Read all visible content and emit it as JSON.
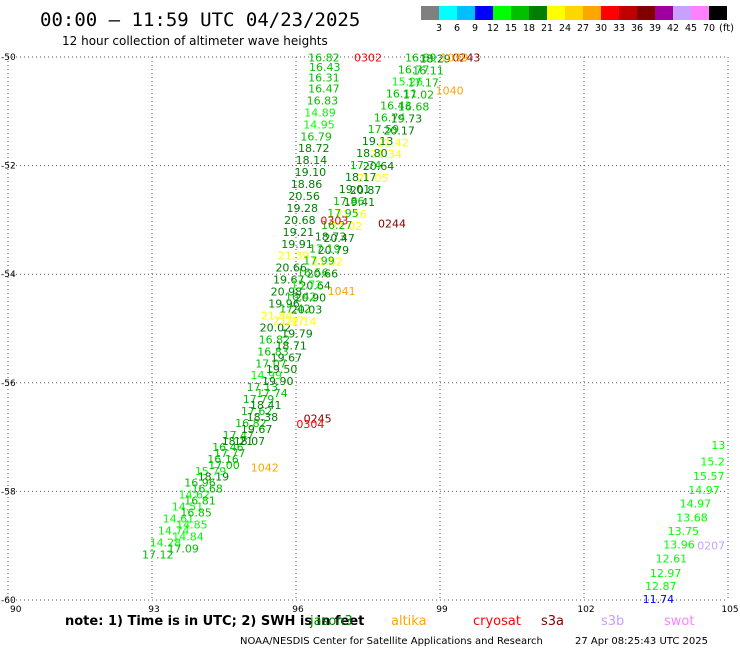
{
  "header": {
    "title": "00:00 – 11:59 UTC 04/23/2025",
    "subtitle": "12 hour collection of altimeter wave heights"
  },
  "colorbar": {
    "labels": [
      "3",
      "6",
      "9",
      "12",
      "15",
      "18",
      "21",
      "24",
      "27",
      "30",
      "33",
      "36",
      "39",
      "42",
      "45",
      "70"
    ],
    "unit": "(ft)",
    "colors": [
      "#808080",
      "#00ffff",
      "#00bfff",
      "#0000ff",
      "#00ff00",
      "#00c000",
      "#008000",
      "#ffff00",
      "#ffd700",
      "#ffa500",
      "#ff0000",
      "#c00000",
      "#800000",
      "#a000a0",
      "#c8a0ff",
      "#ff80ff",
      "#000000"
    ]
  },
  "footer": {
    "note": "note:  1) Time is in UTC;  2) SWH is in feet",
    "legend": [
      {
        "name": "jason3",
        "color": "#008000"
      },
      {
        "name": "altika",
        "color": "#ffa500"
      },
      {
        "name": "cryosat",
        "color": "#ff0000"
      },
      {
        "name": "s3a",
        "color": "#800000"
      },
      {
        "name": "s3b",
        "color": "#c8a0ff"
      },
      {
        "name": "swot",
        "color": "#ff80ff"
      }
    ],
    "credit": "NOAA/NESDIS Center for Satellite Applications and Research",
    "timestamp": "27 Apr 08:25:43 UTC 2025"
  },
  "chart_data": {
    "type": "scatter",
    "xlim": [
      90,
      105
    ],
    "ylim": [
      -60,
      -50
    ],
    "xticks": [
      "90",
      "93",
      "96",
      "99",
      "102",
      "105"
    ],
    "yticks": [
      "-50",
      "-52",
      "-54",
      "-56",
      "-58",
      "-60"
    ],
    "grid": true,
    "points": [
      {
        "x": 96.58,
        "y": -50.01,
        "text": "16.82",
        "color": "#00c000"
      },
      {
        "x": 96.6,
        "y": -50.18,
        "text": "16.43",
        "color": "#00c000"
      },
      {
        "x": 96.58,
        "y": -50.38,
        "text": "16.31",
        "color": "#00c000"
      },
      {
        "x": 96.58,
        "y": -50.58,
        "text": "16.47",
        "color": "#00c000"
      },
      {
        "x": 96.55,
        "y": -50.8,
        "text": "16.83",
        "color": "#00c000"
      },
      {
        "x": 96.5,
        "y": -51.02,
        "text": "14.89",
        "color": "#00ff00"
      },
      {
        "x": 96.48,
        "y": -51.24,
        "text": "14.95",
        "color": "#00ff00"
      },
      {
        "x": 96.42,
        "y": -51.46,
        "text": "16.79",
        "color": "#00c000"
      },
      {
        "x": 96.37,
        "y": -51.68,
        "text": "18.72",
        "color": "#008000"
      },
      {
        "x": 96.32,
        "y": -51.9,
        "text": "18.14",
        "color": "#008000"
      },
      {
        "x": 96.3,
        "y": -52.12,
        "text": "19.10",
        "color": "#008000"
      },
      {
        "x": 96.22,
        "y": -52.34,
        "text": "18.86",
        "color": "#008000"
      },
      {
        "x": 96.17,
        "y": -52.56,
        "text": "20.56",
        "color": "#008000"
      },
      {
        "x": 96.13,
        "y": -52.78,
        "text": "19.28",
        "color": "#008000"
      },
      {
        "x": 96.08,
        "y": -53.0,
        "text": "20.68",
        "color": "#008000"
      },
      {
        "x": 96.05,
        "y": -53.22,
        "text": "19.21",
        "color": "#008000"
      },
      {
        "x": 96.02,
        "y": -53.44,
        "text": "19.91",
        "color": "#008000"
      },
      {
        "x": 95.95,
        "y": -53.66,
        "text": "21.39",
        "color": "#ffff00"
      },
      {
        "x": 95.9,
        "y": -53.88,
        "text": "20.66",
        "color": "#008000"
      },
      {
        "x": 95.85,
        "y": -54.1,
        "text": "19.67",
        "color": "#008000"
      },
      {
        "x": 95.8,
        "y": -54.32,
        "text": "20.98",
        "color": "#008000"
      },
      {
        "x": 95.75,
        "y": -54.54,
        "text": "19.96",
        "color": "#008000"
      },
      {
        "x": 95.6,
        "y": -54.76,
        "text": "21.84",
        "color": "#ffff00"
      },
      {
        "x": 95.57,
        "y": -54.98,
        "text": "20.02",
        "color": "#008000"
      },
      {
        "x": 95.55,
        "y": -55.2,
        "text": "16.82",
        "color": "#00c000"
      },
      {
        "x": 95.52,
        "y": -55.42,
        "text": "16.83",
        "color": "#00c000"
      },
      {
        "x": 95.48,
        "y": -55.64,
        "text": "17.07",
        "color": "#00c000"
      },
      {
        "x": 95.38,
        "y": -55.86,
        "text": "14.99",
        "color": "#00ff00"
      },
      {
        "x": 95.3,
        "y": -56.08,
        "text": "17.13",
        "color": "#00c000"
      },
      {
        "x": 95.22,
        "y": -56.3,
        "text": "17.79",
        "color": "#00c000"
      },
      {
        "x": 95.18,
        "y": -56.52,
        "text": "17.62",
        "color": "#00c000"
      },
      {
        "x": 95.06,
        "y": -56.74,
        "text": "16.82",
        "color": "#00c000"
      },
      {
        "x": 94.8,
        "y": -56.96,
        "text": "17.47",
        "color": "#00c000"
      },
      {
        "x": 94.58,
        "y": -57.18,
        "text": "16.46",
        "color": "#00c000"
      },
      {
        "x": 94.48,
        "y": -57.4,
        "text": "16.16",
        "color": "#00c000"
      },
      {
        "x": 94.22,
        "y": -57.62,
        "text": "15.79",
        "color": "#00ff00"
      },
      {
        "x": 94.0,
        "y": -57.84,
        "text": "16.96",
        "color": "#00c000"
      },
      {
        "x": 93.88,
        "y": -58.06,
        "text": "14.62",
        "color": "#00ff00"
      },
      {
        "x": 93.74,
        "y": -58.28,
        "text": "14.51",
        "color": "#00ff00"
      },
      {
        "x": 93.55,
        "y": -58.5,
        "text": "14.61",
        "color": "#00ff00"
      },
      {
        "x": 93.45,
        "y": -58.72,
        "text": "14.74",
        "color": "#00ff00"
      },
      {
        "x": 93.28,
        "y": -58.94,
        "text": "14.28",
        "color": "#00ff00"
      },
      {
        "x": 93.12,
        "y": -59.16,
        "text": "17.12",
        "color": "#00c000"
      },
      {
        "x": 93.65,
        "y": -59.05,
        "text": "17.09",
        "color": "#00c000"
      },
      {
        "x": 93.75,
        "y": -58.83,
        "text": "14.84",
        "color": "#00ff00"
      },
      {
        "x": 93.83,
        "y": -58.61,
        "text": "14.85",
        "color": "#00ff00"
      },
      {
        "x": 93.92,
        "y": -58.39,
        "text": "16.85",
        "color": "#00c000"
      },
      {
        "x": 94.0,
        "y": -58.17,
        "text": "16.81",
        "color": "#00c000"
      },
      {
        "x": 94.15,
        "y": -57.95,
        "text": "16.68",
        "color": "#00c000"
      },
      {
        "x": 94.28,
        "y": -57.73,
        "text": "18.19",
        "color": "#008000"
      },
      {
        "x": 94.5,
        "y": -57.51,
        "text": "17.00",
        "color": "#00c000"
      },
      {
        "x": 94.62,
        "y": -57.29,
        "text": "17.77",
        "color": "#00c000"
      },
      {
        "x": 94.78,
        "y": -57.07,
        "text": "18.21",
        "color": "#008000"
      },
      {
        "x": 95.03,
        "y": -57.07,
        "text": "18.07",
        "color": "#008000"
      },
      {
        "x": 95.18,
        "y": -56.85,
        "text": "19.67",
        "color": "#008000"
      },
      {
        "x": 95.3,
        "y": -56.63,
        "text": "18.38",
        "color": "#008000"
      },
      {
        "x": 95.37,
        "y": -56.41,
        "text": "18.41",
        "color": "#008000"
      },
      {
        "x": 95.5,
        "y": -56.19,
        "text": "17.74",
        "color": "#00c000"
      },
      {
        "x": 95.62,
        "y": -55.97,
        "text": "19.90",
        "color": "#008000"
      },
      {
        "x": 95.7,
        "y": -55.75,
        "text": "19.50",
        "color": "#008000"
      },
      {
        "x": 95.8,
        "y": -55.53,
        "text": "19.67",
        "color": "#008000"
      },
      {
        "x": 95.9,
        "y": -55.31,
        "text": "18.71",
        "color": "#008000"
      },
      {
        "x": 96.02,
        "y": -55.09,
        "text": "19.79",
        "color": "#008000"
      },
      {
        "x": 96.1,
        "y": -54.87,
        "text": "22.14",
        "color": "#ffff00"
      },
      {
        "x": 96.22,
        "y": -54.65,
        "text": "20.03",
        "color": "#008000"
      },
      {
        "x": 96.3,
        "y": -54.43,
        "text": "20.90",
        "color": "#008000"
      },
      {
        "x": 96.4,
        "y": -54.21,
        "text": "20.64",
        "color": "#008000"
      },
      {
        "x": 96.55,
        "y": -53.99,
        "text": "20.66",
        "color": "#008000"
      },
      {
        "x": 96.65,
        "y": -53.77,
        "text": "21.52",
        "color": "#ffff00"
      },
      {
        "x": 96.78,
        "y": -53.55,
        "text": "20.79",
        "color": "#008000"
      },
      {
        "x": 96.9,
        "y": -53.33,
        "text": "20.47",
        "color": "#008000"
      },
      {
        "x": 97.05,
        "y": -53.11,
        "text": "21.02",
        "color": "#ffff00"
      },
      {
        "x": 97.15,
        "y": -52.89,
        "text": "21.16",
        "color": "#ffff00"
      },
      {
        "x": 97.32,
        "y": -52.67,
        "text": "19.41",
        "color": "#008000"
      },
      {
        "x": 97.45,
        "y": -52.45,
        "text": "20.87",
        "color": "#008000"
      },
      {
        "x": 97.6,
        "y": -52.23,
        "text": "21.05",
        "color": "#ffff00"
      },
      {
        "x": 97.72,
        "y": -52.01,
        "text": "20.64",
        "color": "#008000"
      },
      {
        "x": 97.88,
        "y": -51.79,
        "text": "21.34",
        "color": "#ffff00"
      },
      {
        "x": 98.02,
        "y": -51.57,
        "text": "21.42",
        "color": "#ffff00"
      },
      {
        "x": 98.15,
        "y": -51.35,
        "text": "20.17",
        "color": "#008000"
      },
      {
        "x": 98.3,
        "y": -51.13,
        "text": "19.73",
        "color": "#008000"
      },
      {
        "x": 98.45,
        "y": -50.91,
        "text": "16.68",
        "color": "#00c000"
      },
      {
        "x": 98.55,
        "y": -50.69,
        "text": "17.02",
        "color": "#00c000"
      },
      {
        "x": 98.65,
        "y": -50.47,
        "text": "17.17",
        "color": "#00c000"
      },
      {
        "x": 98.75,
        "y": -50.25,
        "text": "16.11",
        "color": "#00c000"
      },
      {
        "x": 98.9,
        "y": -50.03,
        "text": "18.29",
        "color": "#008000"
      },
      {
        "x": 98.6,
        "y": -50.01,
        "text": "16.89",
        "color": "#00c000"
      },
      {
        "x": 98.45,
        "y": -50.23,
        "text": "16.77",
        "color": "#00c000"
      },
      {
        "x": 98.32,
        "y": -50.45,
        "text": "15.26",
        "color": "#00ff00"
      },
      {
        "x": 98.2,
        "y": -50.67,
        "text": "16.11",
        "color": "#00c000"
      },
      {
        "x": 98.08,
        "y": -50.89,
        "text": "16.43",
        "color": "#00c000"
      },
      {
        "x": 97.95,
        "y": -51.11,
        "text": "16.74",
        "color": "#00c000"
      },
      {
        "x": 97.82,
        "y": -51.33,
        "text": "17.59",
        "color": "#00c000"
      },
      {
        "x": 97.7,
        "y": -51.55,
        "text": "19.13",
        "color": "#008000"
      },
      {
        "x": 97.58,
        "y": -51.77,
        "text": "18.80",
        "color": "#008000"
      },
      {
        "x": 97.45,
        "y": -51.99,
        "text": "17.74",
        "color": "#00c000"
      },
      {
        "x": 97.35,
        "y": -52.21,
        "text": "18.17",
        "color": "#008000"
      },
      {
        "x": 97.22,
        "y": -52.43,
        "text": "19.01",
        "color": "#008000"
      },
      {
        "x": 97.1,
        "y": -52.65,
        "text": "17.86",
        "color": "#00c000"
      },
      {
        "x": 96.98,
        "y": -52.87,
        "text": "17.95",
        "color": "#00c000"
      },
      {
        "x": 96.85,
        "y": -53.09,
        "text": "16.27",
        "color": "#00c000"
      },
      {
        "x": 96.72,
        "y": -53.31,
        "text": "18.73",
        "color": "#008000"
      },
      {
        "x": 96.6,
        "y": -53.53,
        "text": "17.19",
        "color": "#00c000"
      },
      {
        "x": 96.48,
        "y": -53.75,
        "text": "17.99",
        "color": "#00c000"
      },
      {
        "x": 96.35,
        "y": -53.97,
        "text": "16.56",
        "color": "#00c000"
      },
      {
        "x": 96.22,
        "y": -54.19,
        "text": "15.72",
        "color": "#00ff00"
      },
      {
        "x": 96.1,
        "y": -54.41,
        "text": "16.42",
        "color": "#00c000"
      },
      {
        "x": 95.98,
        "y": -54.63,
        "text": "17.42",
        "color": "#00c000"
      },
      {
        "x": 95.85,
        "y": -54.85,
        "text": "21.47",
        "color": "#ffff00"
      },
      {
        "x": 97.5,
        "y": -50.01,
        "text": "0302",
        "color": "#ff0000"
      },
      {
        "x": 99.55,
        "y": -50.01,
        "text": "0243",
        "color": "#800000"
      },
      {
        "x": 99.3,
        "y": -50.01,
        "text": "1039",
        "color": "#ffa500"
      },
      {
        "x": 99.2,
        "y": -50.62,
        "text": "1040",
        "color": "#ffa500"
      },
      {
        "x": 98.0,
        "y": -53.07,
        "text": "0244",
        "color": "#800000"
      },
      {
        "x": 96.8,
        "y": -53.01,
        "text": "0303",
        "color": "#ff0000"
      },
      {
        "x": 96.95,
        "y": -54.31,
        "text": "1041",
        "color": "#ffa500"
      },
      {
        "x": 96.45,
        "y": -56.66,
        "text": "0245",
        "color": "#800000"
      },
      {
        "x": 96.3,
        "y": -56.76,
        "text": "0304",
        "color": "#ff0000"
      },
      {
        "x": 95.35,
        "y": -57.56,
        "text": "1042",
        "color": "#ffa500"
      },
      {
        "x": 104.65,
        "y": -59.0,
        "text": "0207",
        "color": "#c8a0ff"
      },
      {
        "x": 104.8,
        "y": -57.15,
        "text": "13",
        "color": "#00ff00"
      },
      {
        "x": 104.68,
        "y": -57.45,
        "text": "15.2",
        "color": "#00ff00"
      },
      {
        "x": 104.6,
        "y": -57.72,
        "text": "15.57",
        "color": "#00ff00"
      },
      {
        "x": 104.5,
        "y": -57.97,
        "text": "14.97",
        "color": "#00ff00"
      },
      {
        "x": 104.32,
        "y": -58.22,
        "text": "14.97",
        "color": "#00ff00"
      },
      {
        "x": 104.25,
        "y": -58.48,
        "text": "13.68",
        "color": "#00ff00"
      },
      {
        "x": 104.07,
        "y": -58.73,
        "text": "13.75",
        "color": "#00ff00"
      },
      {
        "x": 103.98,
        "y": -58.98,
        "text": "13.96",
        "color": "#00ff00"
      },
      {
        "x": 103.82,
        "y": -59.24,
        "text": "12.61",
        "color": "#00ff00"
      },
      {
        "x": 103.7,
        "y": -59.5,
        "text": "12.97",
        "color": "#00ff00"
      },
      {
        "x": 103.6,
        "y": -59.74,
        "text": "12.87",
        "color": "#00ff00"
      },
      {
        "x": 103.55,
        "y": -59.98,
        "text": "11.74",
        "color": "#0000ff"
      }
    ]
  }
}
